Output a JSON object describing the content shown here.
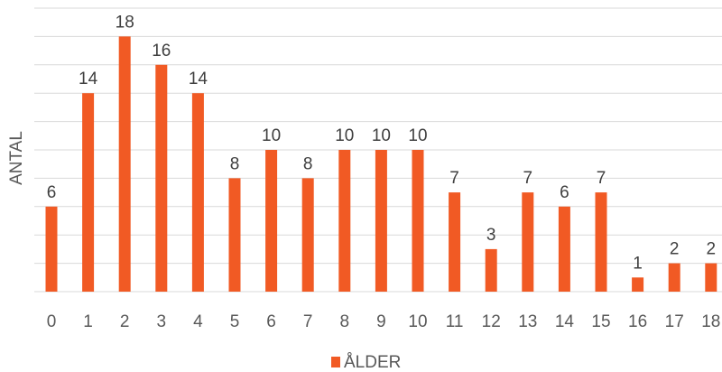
{
  "chart_data": {
    "type": "bar",
    "categories": [
      "0",
      "1",
      "2",
      "3",
      "4",
      "5",
      "6",
      "7",
      "8",
      "9",
      "10",
      "11",
      "12",
      "13",
      "14",
      "15",
      "16",
      "17",
      "18"
    ],
    "series": [
      {
        "name": "ÅLDER",
        "values": [
          6,
          14,
          18,
          16,
          14,
          8,
          10,
          8,
          10,
          10,
          10,
          7,
          3,
          7,
          6,
          7,
          1,
          2,
          2
        ]
      }
    ],
    "xlabel": "",
    "ylabel": "ANTAL",
    "ylim": [
      0,
      20
    ],
    "grid": true,
    "show_y_tick_labels": false,
    "data_labels": true,
    "legend_position": "bottom-center",
    "colors": {
      "bar": "#f15a24",
      "grid": "#d9d9d9",
      "text": "#595959"
    }
  }
}
